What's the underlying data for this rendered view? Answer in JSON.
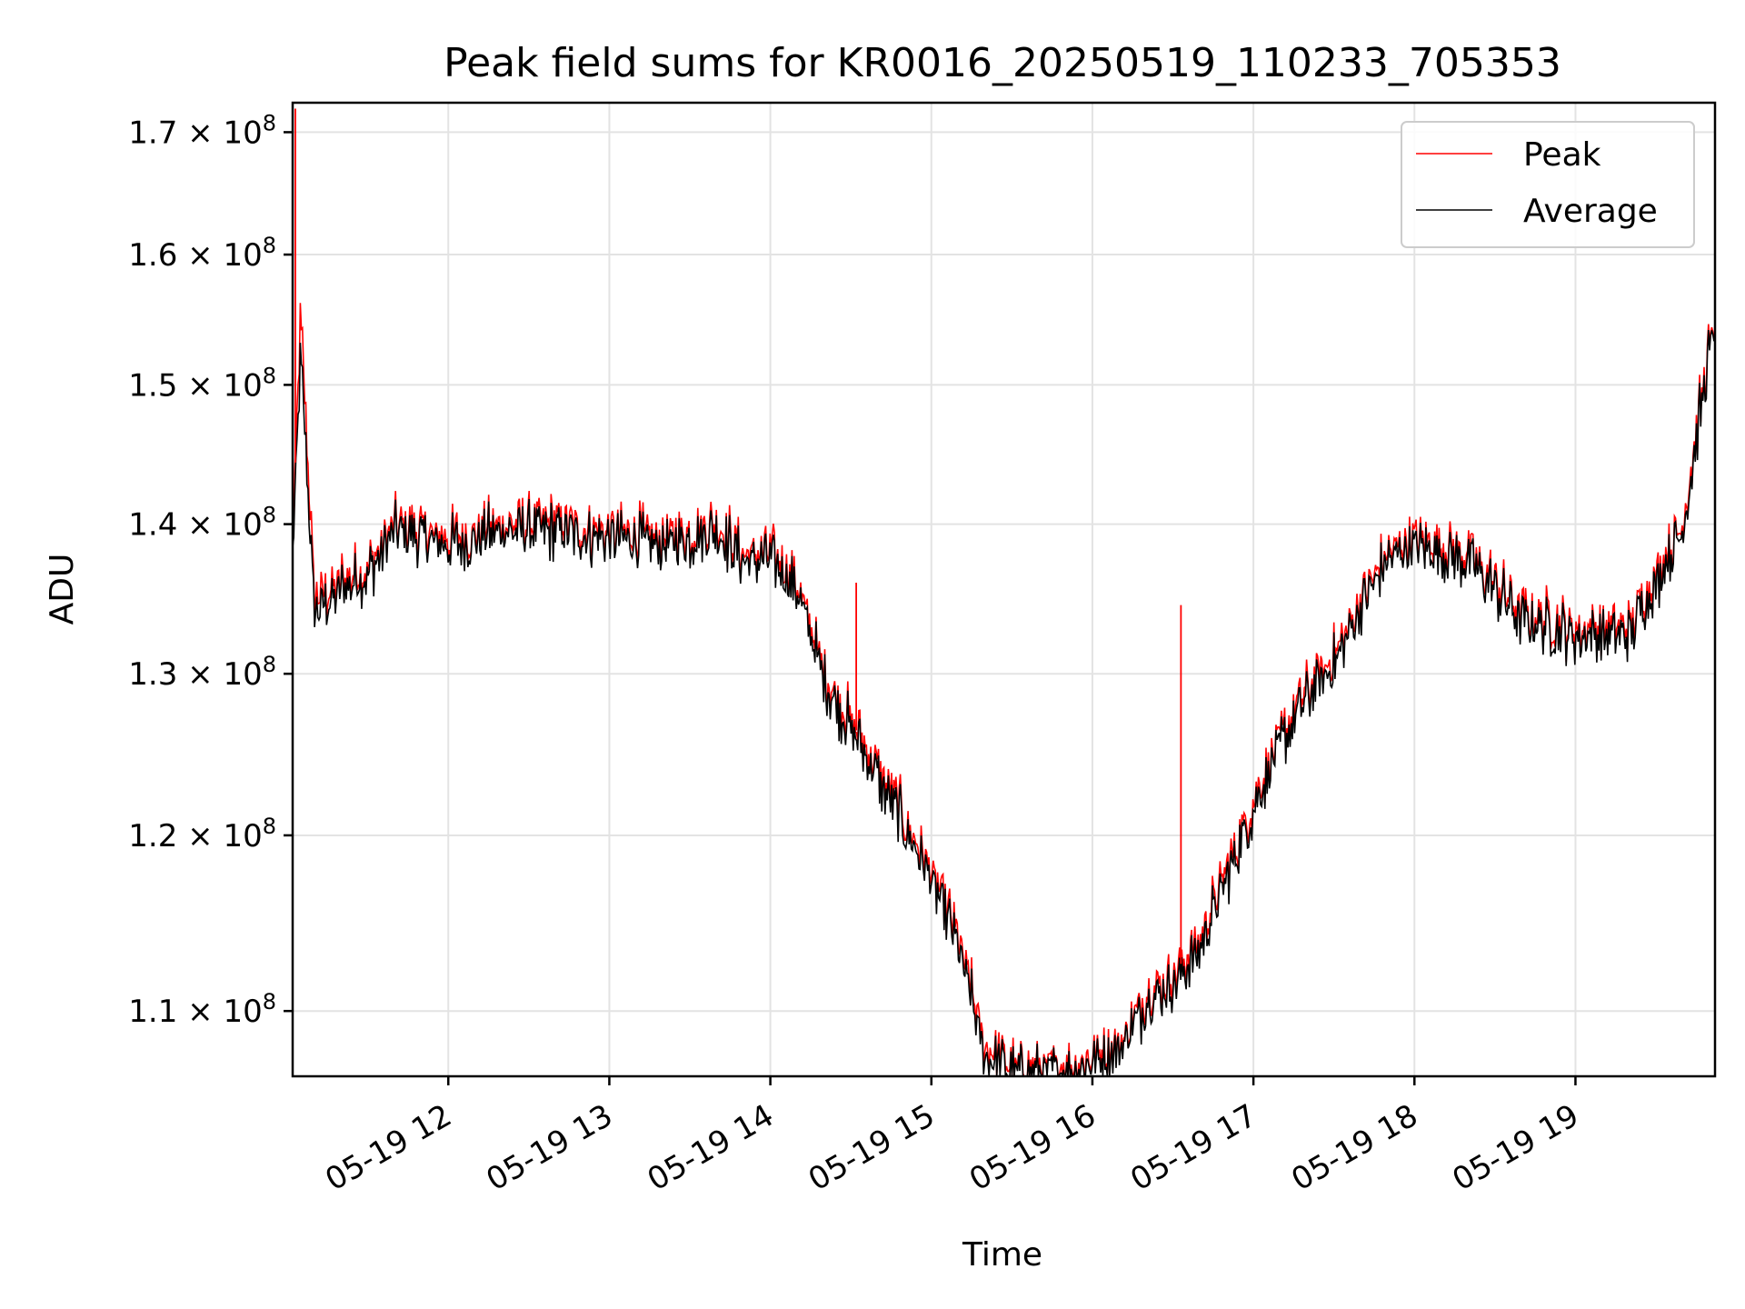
{
  "chart_data": {
    "type": "line",
    "title": "Peak field sums for KR0016_20250519_110233_705353",
    "xlabel": "Time",
    "ylabel": "ADU",
    "y_scale": "log",
    "grid": true,
    "legend_position": "top-right",
    "xlim": [
      "2025-05-19 11:02",
      "2025-05-19 19:52"
    ],
    "ylim": [
      106500000.0,
      172500000.0
    ],
    "x_tick_labels": [
      "05-19 12",
      "05-19 13",
      "05-19 14",
      "05-19 15",
      "05-19 16",
      "05-19 17",
      "05-19 18",
      "05-19 19"
    ],
    "y_ticks": [
      {
        "value": 110000000.0,
        "mantissa": "1.1",
        "exp": "8"
      },
      {
        "value": 120000000.0,
        "mantissa": "1.2",
        "exp": "8"
      },
      {
        "value": 130000000.0,
        "mantissa": "1.3",
        "exp": "8"
      },
      {
        "value": 140000000.0,
        "mantissa": "1.4",
        "exp": "8"
      },
      {
        "value": 150000000.0,
        "mantissa": "1.5",
        "exp": "8"
      },
      {
        "value": 160000000.0,
        "mantissa": "1.6",
        "exp": "8"
      },
      {
        "value": 170000000.0,
        "mantissa": "1.7",
        "exp": "8"
      }
    ],
    "x": [
      "2025-05-19 11:02",
      "2025-05-19 11:05",
      "2025-05-19 11:10",
      "2025-05-19 11:20",
      "2025-05-19 11:30",
      "2025-05-19 11:40",
      "2025-05-19 12:00",
      "2025-05-19 12:20",
      "2025-05-19 12:40",
      "2025-05-19 13:00",
      "2025-05-19 13:20",
      "2025-05-19 13:40",
      "2025-05-19 13:50",
      "2025-05-19 14:00",
      "2025-05-19 14:10",
      "2025-05-19 14:20",
      "2025-05-19 14:30",
      "2025-05-19 14:40",
      "2025-05-19 14:50",
      "2025-05-19 15:00",
      "2025-05-19 15:10",
      "2025-05-19 15:20",
      "2025-05-19 15:30",
      "2025-05-19 15:40",
      "2025-05-19 15:50",
      "2025-05-19 16:00",
      "2025-05-19 16:10",
      "2025-05-19 16:20",
      "2025-05-19 16:30",
      "2025-05-19 16:40",
      "2025-05-19 16:50",
      "2025-05-19 17:00",
      "2025-05-19 17:10",
      "2025-05-19 17:20",
      "2025-05-19 17:30",
      "2025-05-19 17:40",
      "2025-05-19 17:50",
      "2025-05-19 18:00",
      "2025-05-19 18:20",
      "2025-05-19 18:40",
      "2025-05-19 19:00",
      "2025-05-19 19:20",
      "2025-05-19 19:40",
      "2025-05-19 19:52"
    ],
    "series": [
      {
        "name": "Peak",
        "color": "#ff0000",
        "values": [
          139000000.0,
          155000000.0,
          135000000.0,
          136000000.0,
          137000000.0,
          140000000.0,
          139000000.0,
          140000000.0,
          140000000.0,
          139500000.0,
          139000000.0,
          140000000.0,
          138000000.0,
          138000000.0,
          136000000.0,
          130000000.0,
          127000000.0,
          124000000.0,
          121000000.0,
          118000000.0,
          114000000.0,
          108000000.0,
          107000000.0,
          107000000.0,
          107000000.0,
          107500000.0,
          108000000.0,
          111000000.0,
          112000000.0,
          114000000.0,
          118000000.0,
          122000000.0,
          126000000.0,
          129000000.0,
          131000000.0,
          135000000.0,
          138000000.0,
          139000000.0,
          138000000.0,
          134000000.0,
          133000000.0,
          133000000.0,
          140000000.0,
          155500000.0
        ],
        "spikes": [
          {
            "x": "2025-05-19 11:03",
            "value": 172000000.0
          },
          {
            "x": "2025-05-19 14:32",
            "value": 136000000.0
          },
          {
            "x": "2025-05-19 16:33",
            "value": 134500000.0
          }
        ]
      },
      {
        "name": "Average",
        "color": "#000000",
        "values": [
          138000000.0,
          152000000.0,
          134000000.0,
          135500000.0,
          136500000.0,
          139500000.0,
          138500000.0,
          139500000.0,
          139500000.0,
          139000000.0,
          138500000.0,
          139500000.0,
          137500000.0,
          137500000.0,
          135500000.0,
          129500000.0,
          126500000.0,
          123500000.0,
          120500000.0,
          117500000.0,
          113500000.0,
          107500000.0,
          106700000.0,
          106700000.0,
          106700000.0,
          107200000.0,
          107800000.0,
          110500000.0,
          111500000.0,
          113500000.0,
          117500000.0,
          121500000.0,
          125500000.0,
          128500000.0,
          130500000.0,
          134500000.0,
          137500000.0,
          138500000.0,
          137500000.0,
          133500000.0,
          132500000.0,
          132500000.0,
          139500000.0,
          155000000.0
        ]
      }
    ]
  }
}
